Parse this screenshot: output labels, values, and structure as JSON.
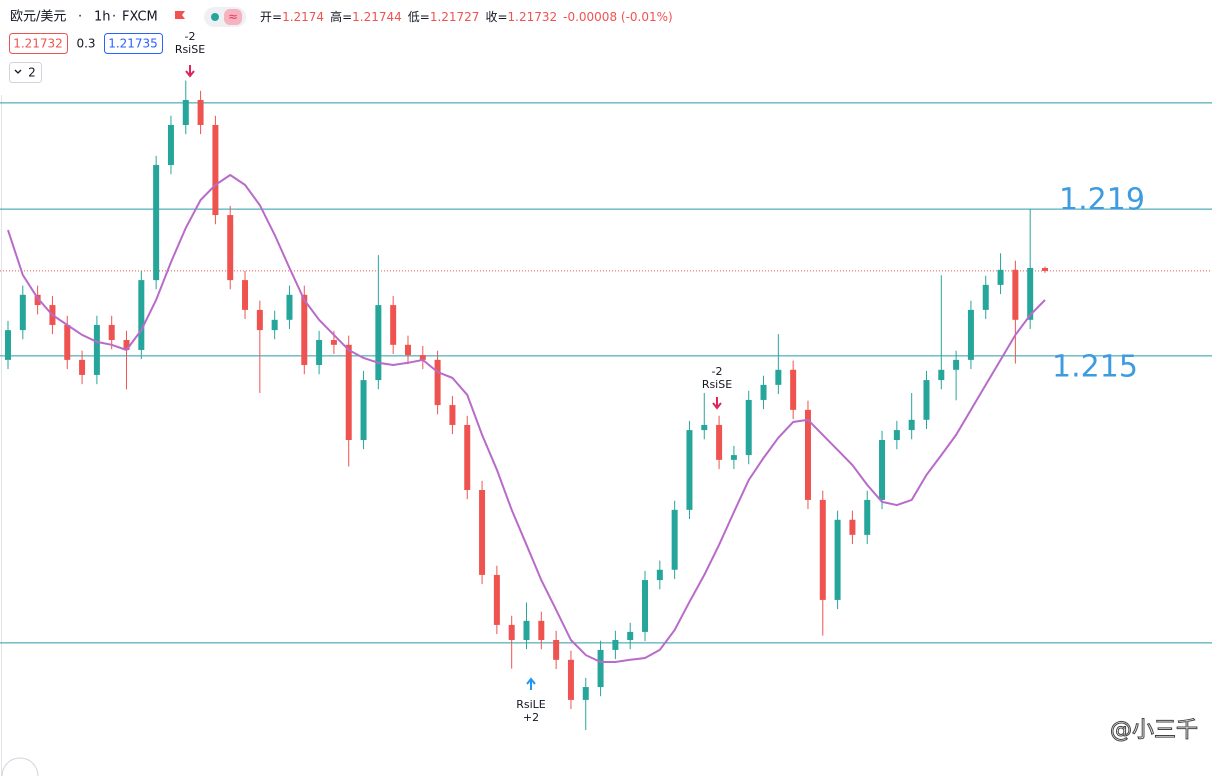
{
  "chart_data": {
    "type": "candlestick",
    "symbol": "欧元/美元",
    "interval": "1h",
    "source": "FXCM",
    "ohlc_labels": [
      "开=",
      "高=",
      "低=",
      "收="
    ],
    "change": {
      "value": -8e-05,
      "label": "-0.00008 (-0.01%)"
    },
    "sell_price": "1.21732",
    "spread": "0.3",
    "buy_price": "1.21735",
    "indicator_count": "2",
    "up_color": "#26a69a",
    "down_color": "#ef5350",
    "ma_color": "#b86bc8",
    "line_color": "#2a9aa8",
    "label_color": "#3d9be0",
    "ylim": [
      1.20358,
      1.22469
    ],
    "candles": [
      [
        1.2149,
        1.21596,
        1.21465,
        1.21571
      ],
      [
        1.21571,
        1.21692,
        1.21546,
        1.21667
      ],
      [
        1.21667,
        1.21692,
        1.21614,
        1.21639
      ],
      [
        1.21639,
        1.21664,
        1.2156,
        1.21585
      ],
      [
        1.21585,
        1.2161,
        1.21465,
        1.2149
      ],
      [
        1.2149,
        1.21515,
        1.21424,
        1.21449
      ],
      [
        1.21449,
        1.2161,
        1.21424,
        1.21585
      ],
      [
        1.21585,
        1.2161,
        1.21519,
        1.21544
      ],
      [
        1.21544,
        1.21569,
        1.2141,
        1.21517
      ],
      [
        1.21517,
        1.21732,
        1.21492,
        1.21707
      ],
      [
        1.21707,
        1.22045,
        1.21682,
        1.2202
      ],
      [
        1.2202,
        1.22154,
        1.21995,
        1.22129
      ],
      [
        1.22129,
        1.2225,
        1.22104,
        1.22197
      ],
      [
        1.22197,
        1.22222,
        1.22104,
        1.22129
      ],
      [
        1.22129,
        1.22154,
        1.21859,
        1.21884
      ],
      [
        1.21884,
        1.21909,
        1.21682,
        1.21707
      ],
      [
        1.21707,
        1.21732,
        1.21601,
        1.21626
      ],
      [
        1.21626,
        1.21651,
        1.214,
        1.21571
      ],
      [
        1.21571,
        1.21624,
        1.21546,
        1.21599
      ],
      [
        1.21599,
        1.21692,
        1.21574,
        1.21667
      ],
      [
        1.21667,
        1.21692,
        1.21451,
        1.21476
      ],
      [
        1.21476,
        1.21569,
        1.21451,
        1.21544
      ],
      [
        1.21544,
        1.21569,
        1.21506,
        1.21531
      ],
      [
        1.21531,
        1.21556,
        1.212,
        1.21272
      ],
      [
        1.21272,
        1.2146,
        1.21247,
        1.21435
      ],
      [
        1.21435,
        1.21775,
        1.2141,
        1.21639
      ],
      [
        1.21639,
        1.21664,
        1.21506,
        1.21531
      ],
      [
        1.21531,
        1.21556,
        1.21478,
        1.21503
      ],
      [
        1.21503,
        1.21528,
        1.21465,
        1.2149
      ],
      [
        1.2149,
        1.21515,
        1.21342,
        1.21367
      ],
      [
        1.21367,
        1.21392,
        1.21288,
        1.21313
      ],
      [
        1.21313,
        1.21338,
        1.21111,
        1.21136
      ],
      [
        1.21136,
        1.21161,
        1.2088,
        1.20905
      ],
      [
        1.20905,
        1.2093,
        1.20744,
        1.20769
      ],
      [
        1.20769,
        1.20794,
        1.2065,
        1.20728
      ],
      [
        1.20728,
        1.2083,
        1.20703,
        1.2078
      ],
      [
        1.2078,
        1.20805,
        1.20703,
        1.20728
      ],
      [
        1.20728,
        1.20753,
        1.20649,
        1.20674
      ],
      [
        1.20674,
        1.20699,
        1.2054,
        1.20565
      ],
      [
        1.20565,
        1.20625,
        1.20483,
        1.206
      ],
      [
        1.206,
        1.20726,
        1.20575,
        1.20701
      ],
      [
        1.20701,
        1.20753,
        1.20676,
        1.20728
      ],
      [
        1.20728,
        1.20775,
        1.20703,
        1.2075
      ],
      [
        1.2075,
        1.20916,
        1.20725,
        1.20891
      ],
      [
        1.20891,
        1.20944,
        1.20866,
        1.20919
      ],
      [
        1.20919,
        1.21107,
        1.20894,
        1.21082
      ],
      [
        1.21082,
        1.21324,
        1.21057,
        1.21299
      ],
      [
        1.21299,
        1.214,
        1.21274,
        1.21313
      ],
      [
        1.21313,
        1.21338,
        1.21193,
        1.21218
      ],
      [
        1.21218,
        1.21256,
        1.21193,
        1.21231
      ],
      [
        1.21231,
        1.21406,
        1.21206,
        1.21381
      ],
      [
        1.21381,
        1.21447,
        1.21356,
        1.21422
      ],
      [
        1.21422,
        1.2156,
        1.21397,
        1.21463
      ],
      [
        1.21463,
        1.21488,
        1.21329,
        1.21354
      ],
      [
        1.21354,
        1.21379,
        1.21084,
        1.21109
      ],
      [
        1.21109,
        1.21134,
        1.2074,
        1.20837
      ],
      [
        1.20837,
        1.2108,
        1.20812,
        1.21055
      ],
      [
        1.21055,
        1.2108,
        1.20989,
        1.21014
      ],
      [
        1.21014,
        1.21134,
        1.20989,
        1.21109
      ],
      [
        1.21109,
        1.21297,
        1.21084,
        1.21272
      ],
      [
        1.21272,
        1.21324,
        1.21247,
        1.21299
      ],
      [
        1.21299,
        1.214,
        1.21274,
        1.21327
      ],
      [
        1.21327,
        1.2146,
        1.21302,
        1.21435
      ],
      [
        1.21435,
        1.2172,
        1.2141,
        1.21463
      ],
      [
        1.21463,
        1.21515,
        1.2138,
        1.2149
      ],
      [
        1.2149,
        1.21651,
        1.21465,
        1.21626
      ],
      [
        1.21626,
        1.21719,
        1.21601,
        1.21694
      ],
      [
        1.21694,
        1.2178,
        1.21669,
        1.21735
      ],
      [
        1.21735,
        1.2176,
        1.2148,
        1.21599
      ],
      [
        1.21599,
        1.219,
        1.21574,
        1.2174
      ],
      [
        1.2174,
        1.21744,
        1.21727,
        1.21732
      ]
    ],
    "ma": [
      1.21843,
      1.21721,
      1.21658,
      1.21612,
      1.21585,
      1.21558,
      1.21539,
      1.21531,
      1.21517,
      1.21571,
      1.21653,
      1.21756,
      1.21849,
      1.21925,
      1.21966,
      1.21993,
      1.21966,
      1.21911,
      1.2183,
      1.2174,
      1.21653,
      1.21599,
      1.21558,
      1.21517,
      1.21495,
      1.21482,
      1.21476,
      1.21482,
      1.2149,
      1.21457,
      1.21441,
      1.21395,
      1.21286,
      1.21191,
      1.21082,
      1.20987,
      1.20891,
      1.2081,
      1.20728,
      1.20687,
      1.20668,
      1.20668,
      1.20674,
      1.20679,
      1.20701,
      1.20755,
      1.20832,
      1.20905,
      1.20987,
      1.21076,
      1.21163,
      1.21223,
      1.21278,
      1.21321,
      1.21327,
      1.21286,
      1.21245,
      1.21204,
      1.2115,
      1.21104,
      1.21095,
      1.21109,
      1.21177,
      1.21231,
      1.21286,
      1.21354,
      1.21422,
      1.2149,
      1.21558,
      1.21612,
      1.21653
    ],
    "hlines": [
      1.22189,
      1.219,
      1.21501,
      1.2072
    ],
    "price_labels": [
      1.219,
      1.215
    ],
    "signals": [
      {
        "top": "-2",
        "bottom": "RsiSE"
      },
      {
        "top": "RsiLE",
        "bottom": "+2"
      },
      {
        "top": "-2",
        "bottom": "RsiSE"
      }
    ],
    "watermark": "@小三千"
  }
}
